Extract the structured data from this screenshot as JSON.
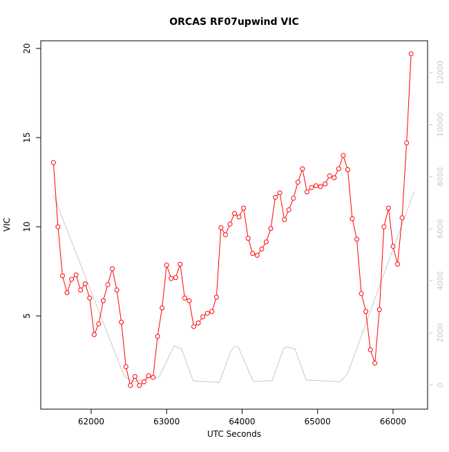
{
  "chart_data": {
    "type": "line",
    "title": "ORCAS RF07upwind VIC",
    "xlabel": "UTC Seconds",
    "ylabel": "VIC",
    "xlim": [
      61332,
      66458
    ],
    "xticks": [
      62000,
      63000,
      64000,
      65000,
      66000
    ],
    "ylim": [
      -0.23,
      20.43
    ],
    "yticks": [
      5,
      10,
      15,
      20
    ],
    "y2lim": [
      -930,
      13227
    ],
    "y2ticks": [
      0,
      2000,
      4000,
      6000,
      8000,
      10000,
      12000
    ],
    "series": [
      {
        "color": "#ff0000",
        "markers": true,
        "x": [
          61500,
          61560,
          61620,
          61680,
          61740,
          61800,
          61860,
          61920,
          61980,
          62040,
          62100,
          62160,
          62220,
          62280,
          62340,
          62400,
          62460,
          62520,
          62580,
          62640,
          62700,
          62760,
          62820,
          62880,
          62940,
          63000,
          63060,
          63120,
          63180,
          63240,
          63300,
          63360,
          63420,
          63480,
          63540,
          63600,
          63660,
          63720,
          63780,
          63840,
          63900,
          63960,
          64020,
          64080,
          64140,
          64200,
          64260,
          64320,
          64380,
          64440,
          64500,
          64560,
          64620,
          64680,
          64740,
          64800,
          64860,
          64920,
          64980,
          65040,
          65100,
          65160,
          65220,
          65280,
          65340,
          65400,
          65460,
          65520,
          65580,
          65640,
          65700,
          65760,
          65820,
          65880,
          65940,
          66000,
          66060,
          66120,
          66180,
          66240
        ],
        "values": [
          13.6,
          10.0,
          7.25,
          6.3,
          7.05,
          7.3,
          6.45,
          6.8,
          6.0,
          3.95,
          4.55,
          5.85,
          6.75,
          7.65,
          6.45,
          4.65,
          2.15,
          1.1,
          1.6,
          1.1,
          1.3,
          1.65,
          1.55,
          3.85,
          5.45,
          7.85,
          7.1,
          7.15,
          7.9,
          6.0,
          5.85,
          4.4,
          4.6,
          4.95,
          5.15,
          5.25,
          6.05,
          9.95,
          9.55,
          10.15,
          10.75,
          10.55,
          11.05,
          9.35,
          8.5,
          8.4,
          8.75,
          9.15,
          9.9,
          11.65,
          11.9,
          10.4,
          10.95,
          11.6,
          12.5,
          13.25,
          11.95,
          12.2,
          12.3,
          12.25,
          12.4,
          12.85,
          12.75,
          13.25,
          14.0,
          13.2,
          10.45,
          9.3,
          6.25,
          5.25,
          3.1,
          2.35,
          5.35,
          10.0,
          11.05,
          8.9,
          7.9,
          10.5,
          14.7,
          19.7
        ]
      },
      {
        "color": "#c8c8c8",
        "axis": "y2",
        "markers": false,
        "x": [
          61500,
          62440,
          62550,
          62900,
          63100,
          63200,
          63350,
          63700,
          63850,
          63900,
          63950,
          64100,
          64150,
          64400,
          64550,
          64600,
          64700,
          64850,
          65300,
          65400,
          66280
        ],
        "values": [
          7300,
          320,
          130,
          300,
          1510,
          1380,
          160,
          100,
          1300,
          1490,
          1460,
          450,
          130,
          170,
          1410,
          1460,
          1380,
          190,
          120,
          450,
          7440
        ]
      }
    ]
  }
}
